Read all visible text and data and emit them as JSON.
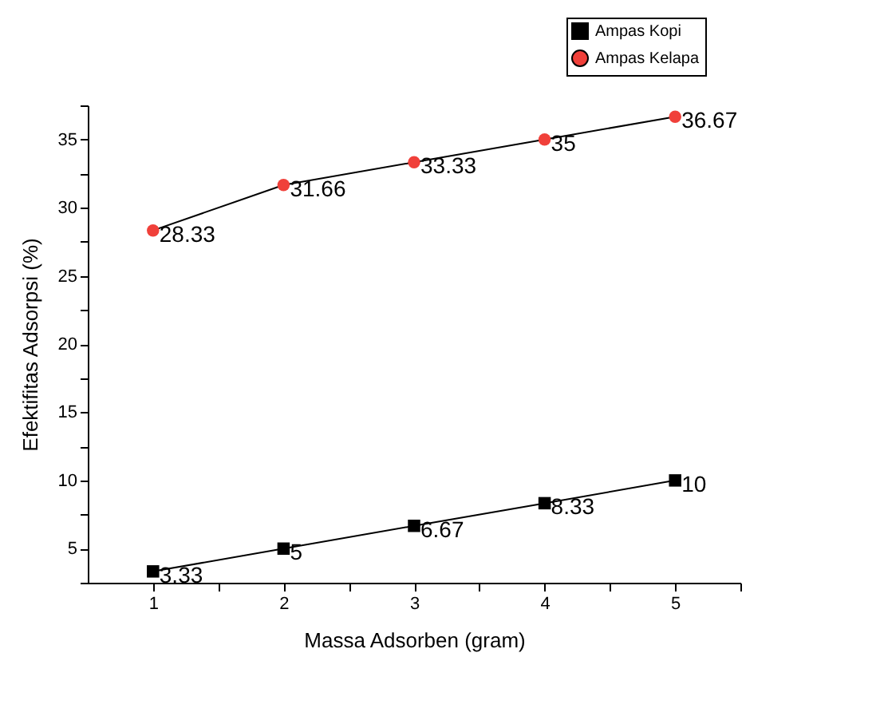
{
  "chart_data": {
    "type": "line",
    "xlabel": "Massa Adsorben (gram)",
    "ylabel": "Efektifitas Adsorpsi (%)",
    "x": [
      1,
      2,
      3,
      4,
      5
    ],
    "series": [
      {
        "name": "Ampas Kopi",
        "color": "#000000",
        "marker": "square",
        "values": [
          3.33,
          5,
          6.67,
          8.33,
          10
        ]
      },
      {
        "name": "Ampas Kelapa",
        "color": "#f0403a",
        "marker": "circle",
        "values": [
          28.33,
          31.66,
          33.33,
          35,
          36.67
        ]
      }
    ],
    "xlim": [
      0.5,
      5.5
    ],
    "xticks": [
      1,
      {
        "value": 1.5,
        "label": null
      },
      2,
      {
        "value": 2.5,
        "label": null
      },
      3,
      {
        "value": 3.5,
        "label": null
      },
      4,
      {
        "value": 4.5,
        "label": null
      },
      5,
      {
        "value": 5.5,
        "label": null
      }
    ],
    "ylim": [
      2.5,
      37.5
    ],
    "yticks": [
      {
        "value": 2.5,
        "label": null
      },
      5,
      {
        "value": 7.5,
        "label": null
      },
      10,
      {
        "value": 12.5,
        "label": null
      },
      15,
      {
        "value": 17.5,
        "label": null
      },
      20,
      {
        "value": 22.5,
        "label": null
      },
      25,
      {
        "value": 27.5,
        "label": null
      },
      30,
      {
        "value": 32.5,
        "label": null
      },
      35,
      {
        "value": 37.5,
        "label": null
      }
    ],
    "grid": false,
    "legend": "top right",
    "data_labels": true,
    "line_style": "solid"
  }
}
